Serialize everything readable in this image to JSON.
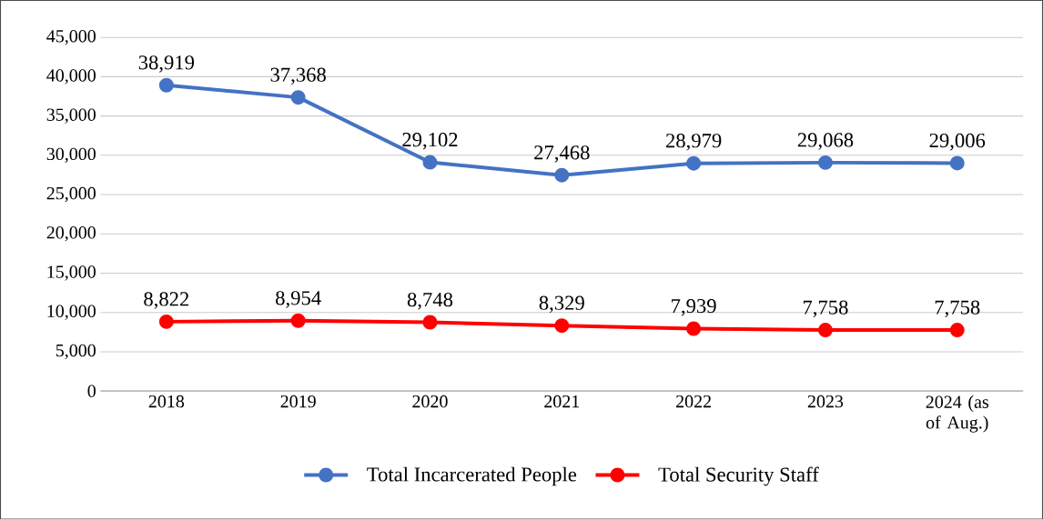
{
  "chart_data": {
    "type": "line",
    "categories": [
      "2018",
      "2019",
      "2020",
      "2021",
      "2022",
      "2023",
      "2024 (as of Aug.)"
    ],
    "series": [
      {
        "name": "Total Incarcerated People",
        "color": "#4472c4",
        "values": [
          38919,
          37368,
          29102,
          27468,
          28979,
          29068,
          29006
        ],
        "value_labels": [
          "38,919",
          "37,368",
          "29,102",
          "27,468",
          "28,979",
          "29,068",
          "29,006"
        ]
      },
      {
        "name": "Total Security Staff",
        "color": "#ff0000",
        "values": [
          8822,
          8954,
          8748,
          8329,
          7939,
          7758,
          7758
        ],
        "value_labels": [
          "8,822",
          "8,954",
          "8,748",
          "8,329",
          "7,939",
          "7,758",
          "7,758"
        ]
      }
    ],
    "ylim": [
      0,
      45000
    ],
    "yticks": [
      {
        "value": 0,
        "label": "0"
      },
      {
        "value": 5000,
        "label": "5,000"
      },
      {
        "value": 10000,
        "label": "10,000"
      },
      {
        "value": 15000,
        "label": "15,000"
      },
      {
        "value": 20000,
        "label": "20,000"
      },
      {
        "value": 25000,
        "label": "25,000"
      },
      {
        "value": 30000,
        "label": "30,000"
      },
      {
        "value": 35000,
        "label": "35,000"
      },
      {
        "value": 40000,
        "label": "40,000"
      },
      {
        "value": 45000,
        "label": "45,000"
      }
    ],
    "grid": "y",
    "legend": "bottom",
    "marker": "circle"
  }
}
